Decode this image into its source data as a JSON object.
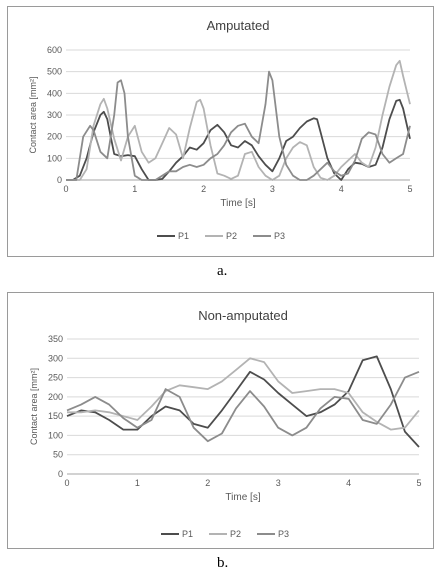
{
  "figure": {
    "caption_a": "a.",
    "caption_b": "b."
  },
  "chart_data": [
    {
      "type": "line",
      "title": "Amputated",
      "xlabel": "Time [s]",
      "ylabel": "Contact area [mm²]",
      "xlim": [
        0,
        5
      ],
      "ylim": [
        0,
        600
      ],
      "xticks": [
        0,
        1,
        2,
        3,
        4,
        5
      ],
      "yticks": [
        0,
        100,
        200,
        300,
        400,
        500,
        600
      ],
      "grid": "horizontal",
      "legend_position": "bottom",
      "series": [
        {
          "name": "P1",
          "color": "#4d4d4d",
          "x": [
            0,
            0.1,
            0.2,
            0.3,
            0.4,
            0.5,
            0.55,
            0.6,
            0.65,
            0.7,
            0.8,
            0.9,
            1.0,
            1.1,
            1.2,
            1.3,
            1.4,
            1.5,
            1.6,
            1.7,
            1.8,
            1.9,
            2.0,
            2.1,
            2.2,
            2.3,
            2.4,
            2.5,
            2.6,
            2.7,
            2.8,
            2.9,
            3.0,
            3.1,
            3.2,
            3.3,
            3.4,
            3.5,
            3.6,
            3.65,
            3.7,
            3.8,
            3.9,
            4.0,
            4.1,
            4.2,
            4.3,
            4.4,
            4.5,
            4.6,
            4.7,
            4.8,
            4.85,
            4.9,
            5.0
          ],
          "values": [
            0,
            0,
            20,
            100,
            220,
            300,
            315,
            280,
            200,
            120,
            110,
            115,
            110,
            50,
            0,
            0,
            5,
            40,
            80,
            110,
            150,
            140,
            170,
            230,
            255,
            220,
            160,
            150,
            180,
            160,
            110,
            70,
            40,
            100,
            180,
            200,
            240,
            270,
            285,
            280,
            220,
            100,
            30,
            0,
            50,
            80,
            75,
            60,
            70,
            150,
            280,
            365,
            370,
            330,
            190
          ]
        },
        {
          "name": "P2",
          "color": "#b3b3b3",
          "x": [
            0,
            0.2,
            0.3,
            0.4,
            0.5,
            0.55,
            0.6,
            0.7,
            0.8,
            0.9,
            1.0,
            1.1,
            1.2,
            1.3,
            1.4,
            1.5,
            1.6,
            1.7,
            1.8,
            1.9,
            1.95,
            2.0,
            2.1,
            2.2,
            2.3,
            2.4,
            2.5,
            2.6,
            2.7,
            2.8,
            2.9,
            3.0,
            3.1,
            3.2,
            3.3,
            3.4,
            3.5,
            3.6,
            3.7,
            3.8,
            3.9,
            4.0,
            4.1,
            4.2,
            4.3,
            4.4,
            4.5,
            4.6,
            4.7,
            4.8,
            4.85,
            4.9,
            5.0
          ],
          "values": [
            0,
            0,
            50,
            250,
            350,
            375,
            330,
            190,
            90,
            200,
            250,
            130,
            80,
            100,
            170,
            240,
            210,
            100,
            240,
            360,
            370,
            330,
            160,
            30,
            20,
            5,
            20,
            120,
            130,
            60,
            20,
            0,
            20,
            100,
            150,
            175,
            160,
            60,
            10,
            0,
            20,
            60,
            90,
            120,
            80,
            60,
            150,
            300,
            430,
            530,
            550,
            480,
            350
          ]
        },
        {
          "name": "P3",
          "color": "#8c8c8c",
          "x": [
            0,
            0.15,
            0.25,
            0.35,
            0.4,
            0.5,
            0.6,
            0.7,
            0.75,
            0.8,
            0.85,
            0.9,
            1.0,
            1.1,
            1.2,
            1.3,
            1.4,
            1.5,
            1.6,
            1.7,
            1.8,
            1.9,
            2.0,
            2.1,
            2.2,
            2.3,
            2.4,
            2.5,
            2.6,
            2.7,
            2.8,
            2.9,
            2.95,
            3.0,
            3.1,
            3.2,
            3.3,
            3.4,
            3.5,
            3.6,
            3.7,
            3.8,
            3.9,
            4.0,
            4.1,
            4.2,
            4.3,
            4.4,
            4.5,
            4.6,
            4.7,
            4.8,
            4.9,
            5.0
          ],
          "values": [
            0,
            0,
            200,
            250,
            230,
            130,
            100,
            300,
            450,
            460,
            400,
            200,
            20,
            0,
            0,
            0,
            20,
            40,
            40,
            60,
            70,
            60,
            70,
            100,
            120,
            160,
            220,
            250,
            260,
            200,
            170,
            350,
            500,
            460,
            200,
            70,
            20,
            0,
            0,
            20,
            50,
            80,
            40,
            20,
            30,
            90,
            190,
            220,
            210,
            120,
            80,
            100,
            120,
            250
          ]
        }
      ]
    },
    {
      "type": "line",
      "title": "Non-amputated",
      "xlabel": "Time [s]",
      "ylabel": "Contact area [mm²]",
      "xlim": [
        0,
        5
      ],
      "ylim": [
        0,
        350
      ],
      "xticks": [
        0,
        1,
        2,
        3,
        4,
        5
      ],
      "yticks": [
        0,
        50,
        100,
        150,
        200,
        250,
        300,
        350
      ],
      "grid": "horizontal",
      "legend_position": "bottom",
      "series": [
        {
          "name": "P1",
          "color": "#4d4d4d",
          "x": [
            0,
            0.2,
            0.4,
            0.6,
            0.8,
            1.0,
            1.2,
            1.4,
            1.6,
            1.8,
            2.0,
            2.2,
            2.4,
            2.6,
            2.8,
            3.0,
            3.2,
            3.4,
            3.6,
            3.8,
            4.0,
            4.2,
            4.4,
            4.6,
            4.8,
            5.0
          ],
          "values": [
            150,
            165,
            160,
            140,
            115,
            115,
            150,
            175,
            165,
            130,
            120,
            165,
            215,
            265,
            245,
            210,
            180,
            150,
            160,
            180,
            215,
            295,
            305,
            220,
            110,
            70
          ]
        },
        {
          "name": "P2",
          "color": "#b3b3b3",
          "x": [
            0,
            0.2,
            0.4,
            0.6,
            0.8,
            1.0,
            1.2,
            1.4,
            1.6,
            1.8,
            2.0,
            2.2,
            2.4,
            2.6,
            2.8,
            3.0,
            3.2,
            3.4,
            3.6,
            3.8,
            4.0,
            4.2,
            4.4,
            4.6,
            4.8,
            5.0
          ],
          "values": [
            160,
            160,
            165,
            160,
            150,
            140,
            175,
            215,
            230,
            225,
            220,
            240,
            270,
            300,
            290,
            240,
            210,
            215,
            220,
            220,
            210,
            160,
            135,
            115,
            120,
            165
          ]
        },
        {
          "name": "P3",
          "color": "#8c8c8c",
          "x": [
            0,
            0.2,
            0.4,
            0.6,
            0.8,
            1.0,
            1.2,
            1.4,
            1.6,
            1.8,
            2.0,
            2.2,
            2.4,
            2.6,
            2.8,
            3.0,
            3.2,
            3.4,
            3.6,
            3.8,
            4.0,
            4.2,
            4.4,
            4.6,
            4.8,
            5.0
          ],
          "values": [
            165,
            180,
            200,
            180,
            145,
            120,
            140,
            220,
            200,
            120,
            85,
            105,
            170,
            215,
            175,
            120,
            100,
            120,
            170,
            200,
            195,
            140,
            130,
            180,
            250,
            265
          ]
        }
      ]
    }
  ]
}
